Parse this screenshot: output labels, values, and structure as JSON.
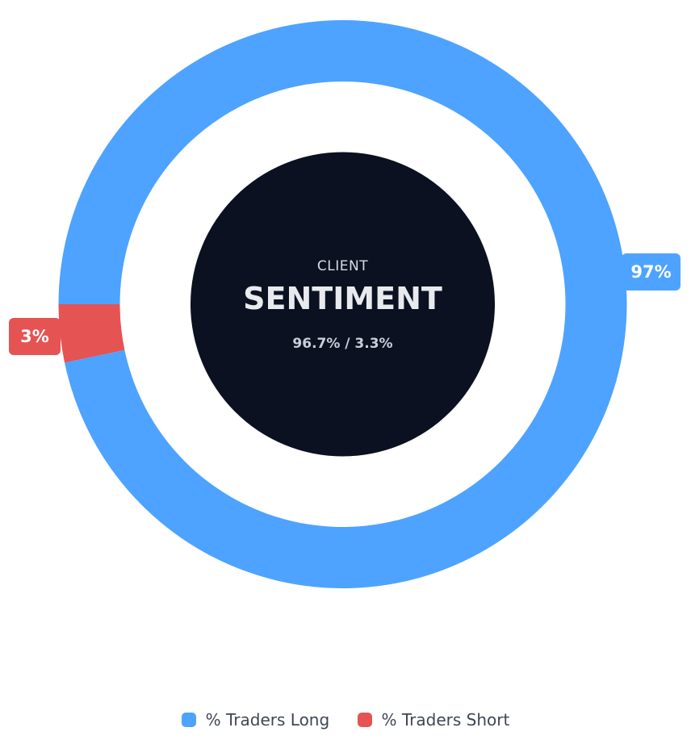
{
  "chart_data": {
    "type": "pie",
    "variant": "donut",
    "series": [
      {
        "name": "% Traders Long",
        "value": 96.7,
        "label": "97%",
        "color": "#4da3ff"
      },
      {
        "name": "% Traders Short",
        "value": 3.3,
        "label": "3%",
        "color": "#e55353"
      }
    ],
    "center": {
      "subtitle": "CLIENT",
      "title": "SENTIMENT",
      "ratio": "96.7% / 3.3%",
      "fill": "#0b1120"
    },
    "legend_position": "bottom-center"
  }
}
